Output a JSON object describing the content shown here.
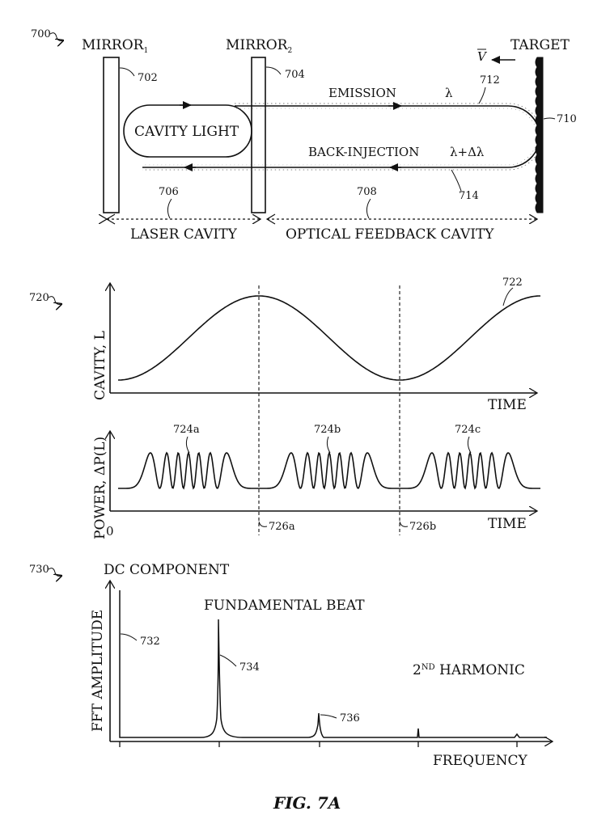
{
  "figure": {
    "caption": "FIG. 7A",
    "panel_a": {
      "ref": "700",
      "mirror1": {
        "label": "MIRROR",
        "sub": "1",
        "ref": "702"
      },
      "mirror2": {
        "label": "MIRROR",
        "sub": "2",
        "ref": "704"
      },
      "cavity_light": "CAVITY LIGHT",
      "emission": "EMISSION",
      "lambda": "λ",
      "emission_ref": "712",
      "back_injection": "BACK-INJECTION",
      "lambda_delta": "λ+Δλ",
      "back_ref": "714",
      "target": "TARGET",
      "target_ref": "710",
      "velocity": "V",
      "laser_cavity": "LASER CAVITY",
      "laser_cavity_ref": "706",
      "optical_feedback": "OPTICAL FEEDBACK CAVITY",
      "optical_feedback_ref": "708"
    },
    "panel_b": {
      "ref": "720",
      "top_ylabel": "CAVITY, L",
      "top_xlabel": "TIME",
      "curve_ref": "722",
      "bottom_ylabel": "POWER, ΔP(L)",
      "bottom_xlabel": "TIME",
      "origin": "0",
      "burst_refs": [
        "724a",
        "724b",
        "724c"
      ],
      "marker_refs": [
        "726a",
        "726b"
      ]
    },
    "panel_c": {
      "ref": "730",
      "dc_label": "DC COMPONENT",
      "fundamental_label": "FUNDAMENTAL BEAT",
      "harmonic_prefix": "2",
      "harmonic_sup": "ND",
      "harmonic_suffix": " HARMONIC",
      "ylabel": "FFT AMPLITUDE",
      "xlabel": "FREQUENCY",
      "peak_refs": [
        "732",
        "734",
        "736"
      ]
    }
  }
}
